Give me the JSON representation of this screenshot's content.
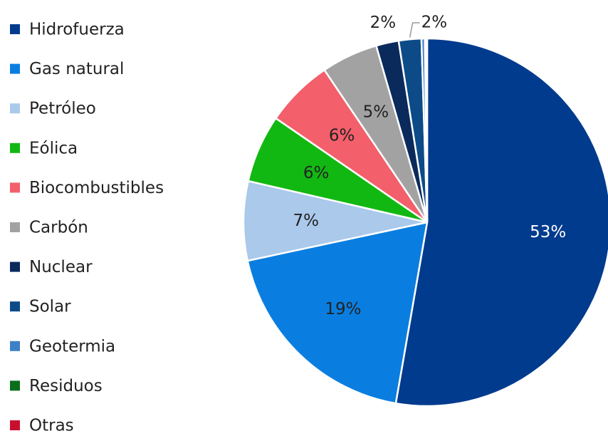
{
  "chart_data": {
    "type": "pie",
    "categories": [
      "Hidrofuerza",
      "Gas natural",
      "Petróleo",
      "Eólica",
      "Biocombustibles",
      "Carbón",
      "Nuclear",
      "Solar",
      "Geotermia",
      "Residuos",
      "Otras"
    ],
    "values": [
      53,
      19,
      7,
      6,
      6,
      5,
      2,
      2,
      0.3,
      0.1,
      0.1
    ],
    "value_labels": [
      "53%",
      "19%",
      "7%",
      "6%",
      "6%",
      "5%",
      "2%",
      "2%",
      null,
      null,
      null
    ],
    "colors": [
      "#003b8e",
      "#0a7ee0",
      "#aac9eb",
      "#12b812",
      "#f35f6b",
      "#a2a2a2",
      "#0b2a5c",
      "#0c4b87",
      "#3d80c5",
      "#0b6e1b",
      "#c8102e"
    ]
  }
}
